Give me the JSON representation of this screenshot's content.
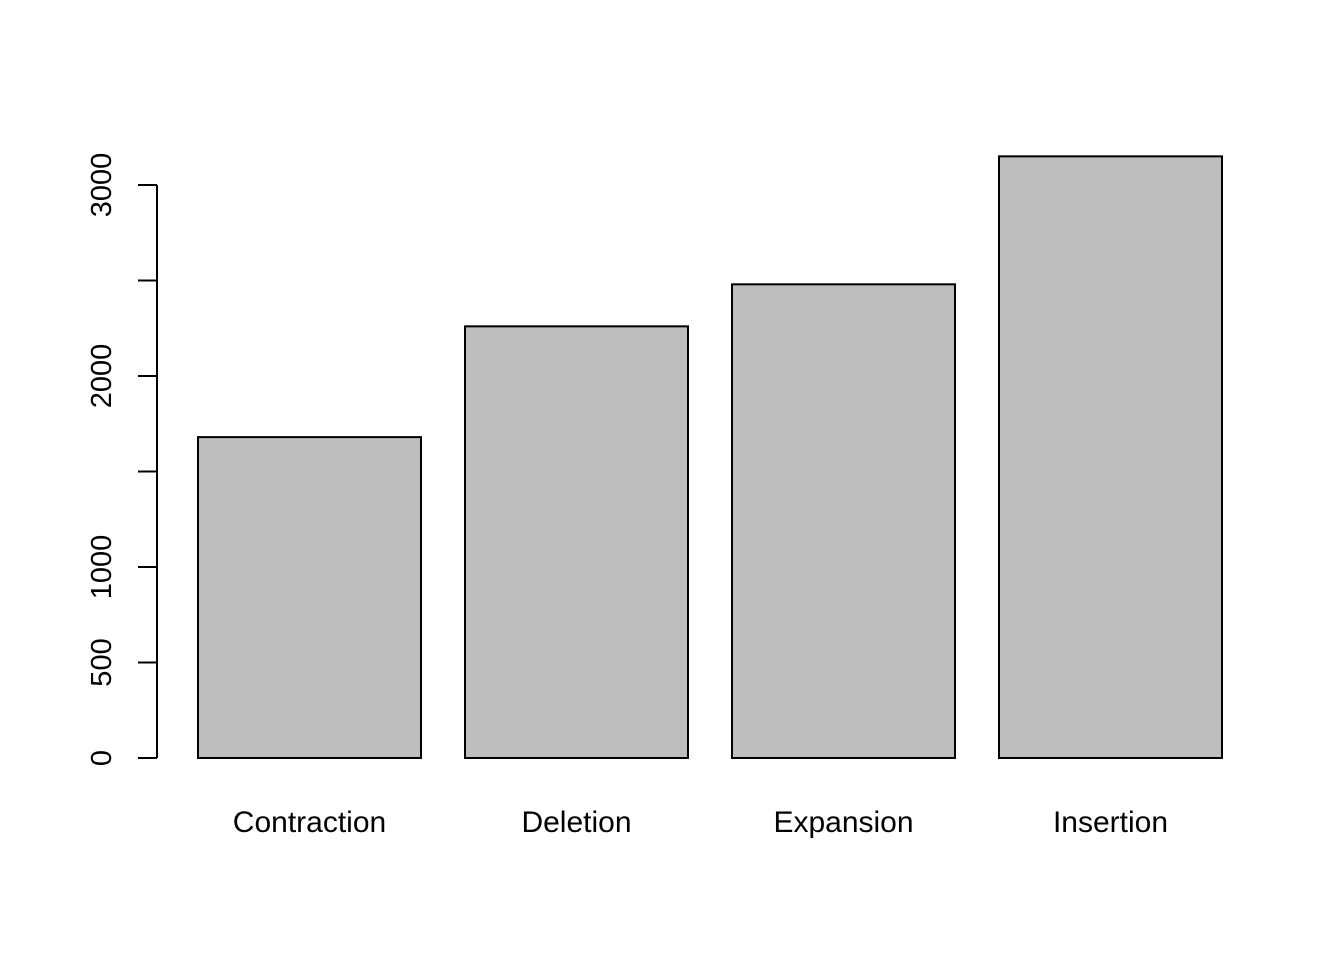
{
  "chart_data": {
    "type": "bar",
    "categories": [
      "Contraction",
      "Deletion",
      "Expansion",
      "Insertion"
    ],
    "values": [
      1680,
      2260,
      2480,
      3150
    ],
    "title": "",
    "xlabel": "",
    "ylabel": "",
    "ylim": [
      0,
      3150
    ],
    "yticks": [
      0,
      500,
      1000,
      1500,
      2000,
      2500,
      3000
    ],
    "ytick_labels": [
      "0",
      "500",
      "1000",
      "",
      "2000",
      "",
      "3000"
    ],
    "grid": false,
    "legend": "none",
    "bar_fill": "#bebebe",
    "bar_stroke": "#000000"
  }
}
